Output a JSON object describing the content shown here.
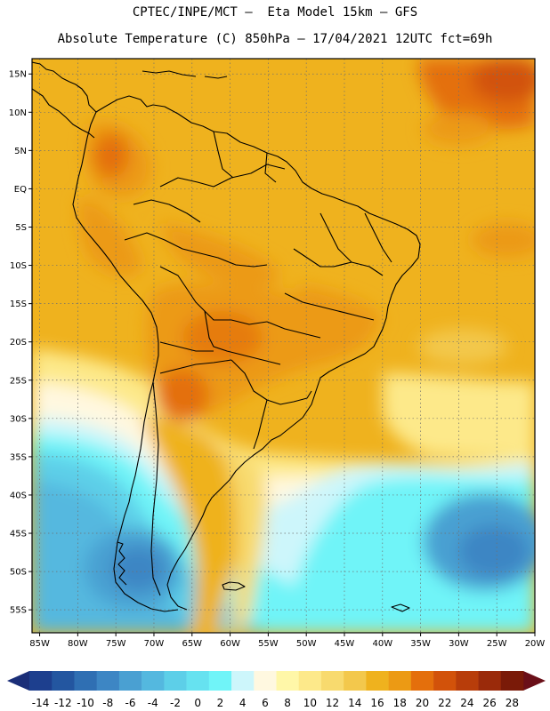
{
  "title": {
    "line1": "CPTEC/INPE/MCT –  Eta Model 15km – GFS",
    "line2": "Absolute Temperature (C) 850hPa – 17/04/2021 12UTC fct=69h"
  },
  "map": {
    "lat_labels": [
      "15N",
      "10N",
      "5N",
      "EQ",
      "5S",
      "10S",
      "15S",
      "20S",
      "25S",
      "30S",
      "35S",
      "40S",
      "45S",
      "50S",
      "55S"
    ],
    "lat_values": [
      15,
      10,
      5,
      0,
      -5,
      -10,
      -15,
      -20,
      -25,
      -30,
      -35,
      -40,
      -45,
      -50,
      -55
    ],
    "lon_labels": [
      "85W",
      "80W",
      "75W",
      "70W",
      "65W",
      "60W",
      "55W",
      "50W",
      "45W",
      "40W",
      "35W",
      "30W",
      "25W",
      "20W"
    ],
    "lon_values": [
      -85,
      -80,
      -75,
      -70,
      -65,
      -60,
      -55,
      -50,
      -45,
      -40,
      -35,
      -30,
      -25,
      -20
    ],
    "lon_range": [
      -86,
      -20
    ],
    "lat_range": [
      17,
      -58
    ]
  },
  "colorbar": {
    "labels": [
      "-14",
      "-12",
      "-10",
      "-8",
      "-6",
      "-4",
      "-2",
      "0",
      "2",
      "4",
      "6",
      "8",
      "10",
      "12",
      "14",
      "16",
      "18",
      "20",
      "22",
      "24",
      "26",
      "28"
    ],
    "colors": [
      "#1d3f8e",
      "#2356a0",
      "#2f6fb3",
      "#3d86c4",
      "#4aa0d2",
      "#54b8df",
      "#5dcfe8",
      "#66e2f0",
      "#70f4f8",
      "#cdf6fb",
      "#fff8e0",
      "#fff7a8",
      "#fde98a",
      "#f8da6e",
      "#f3c84c",
      "#efb21e",
      "#ec9a14",
      "#e46f0c",
      "#d2520a",
      "#b83d0a",
      "#9a2a0a",
      "#7a1a08"
    ],
    "left_arrow_color": "#1a2e78",
    "right_arrow_color": "#6a0f18"
  }
}
